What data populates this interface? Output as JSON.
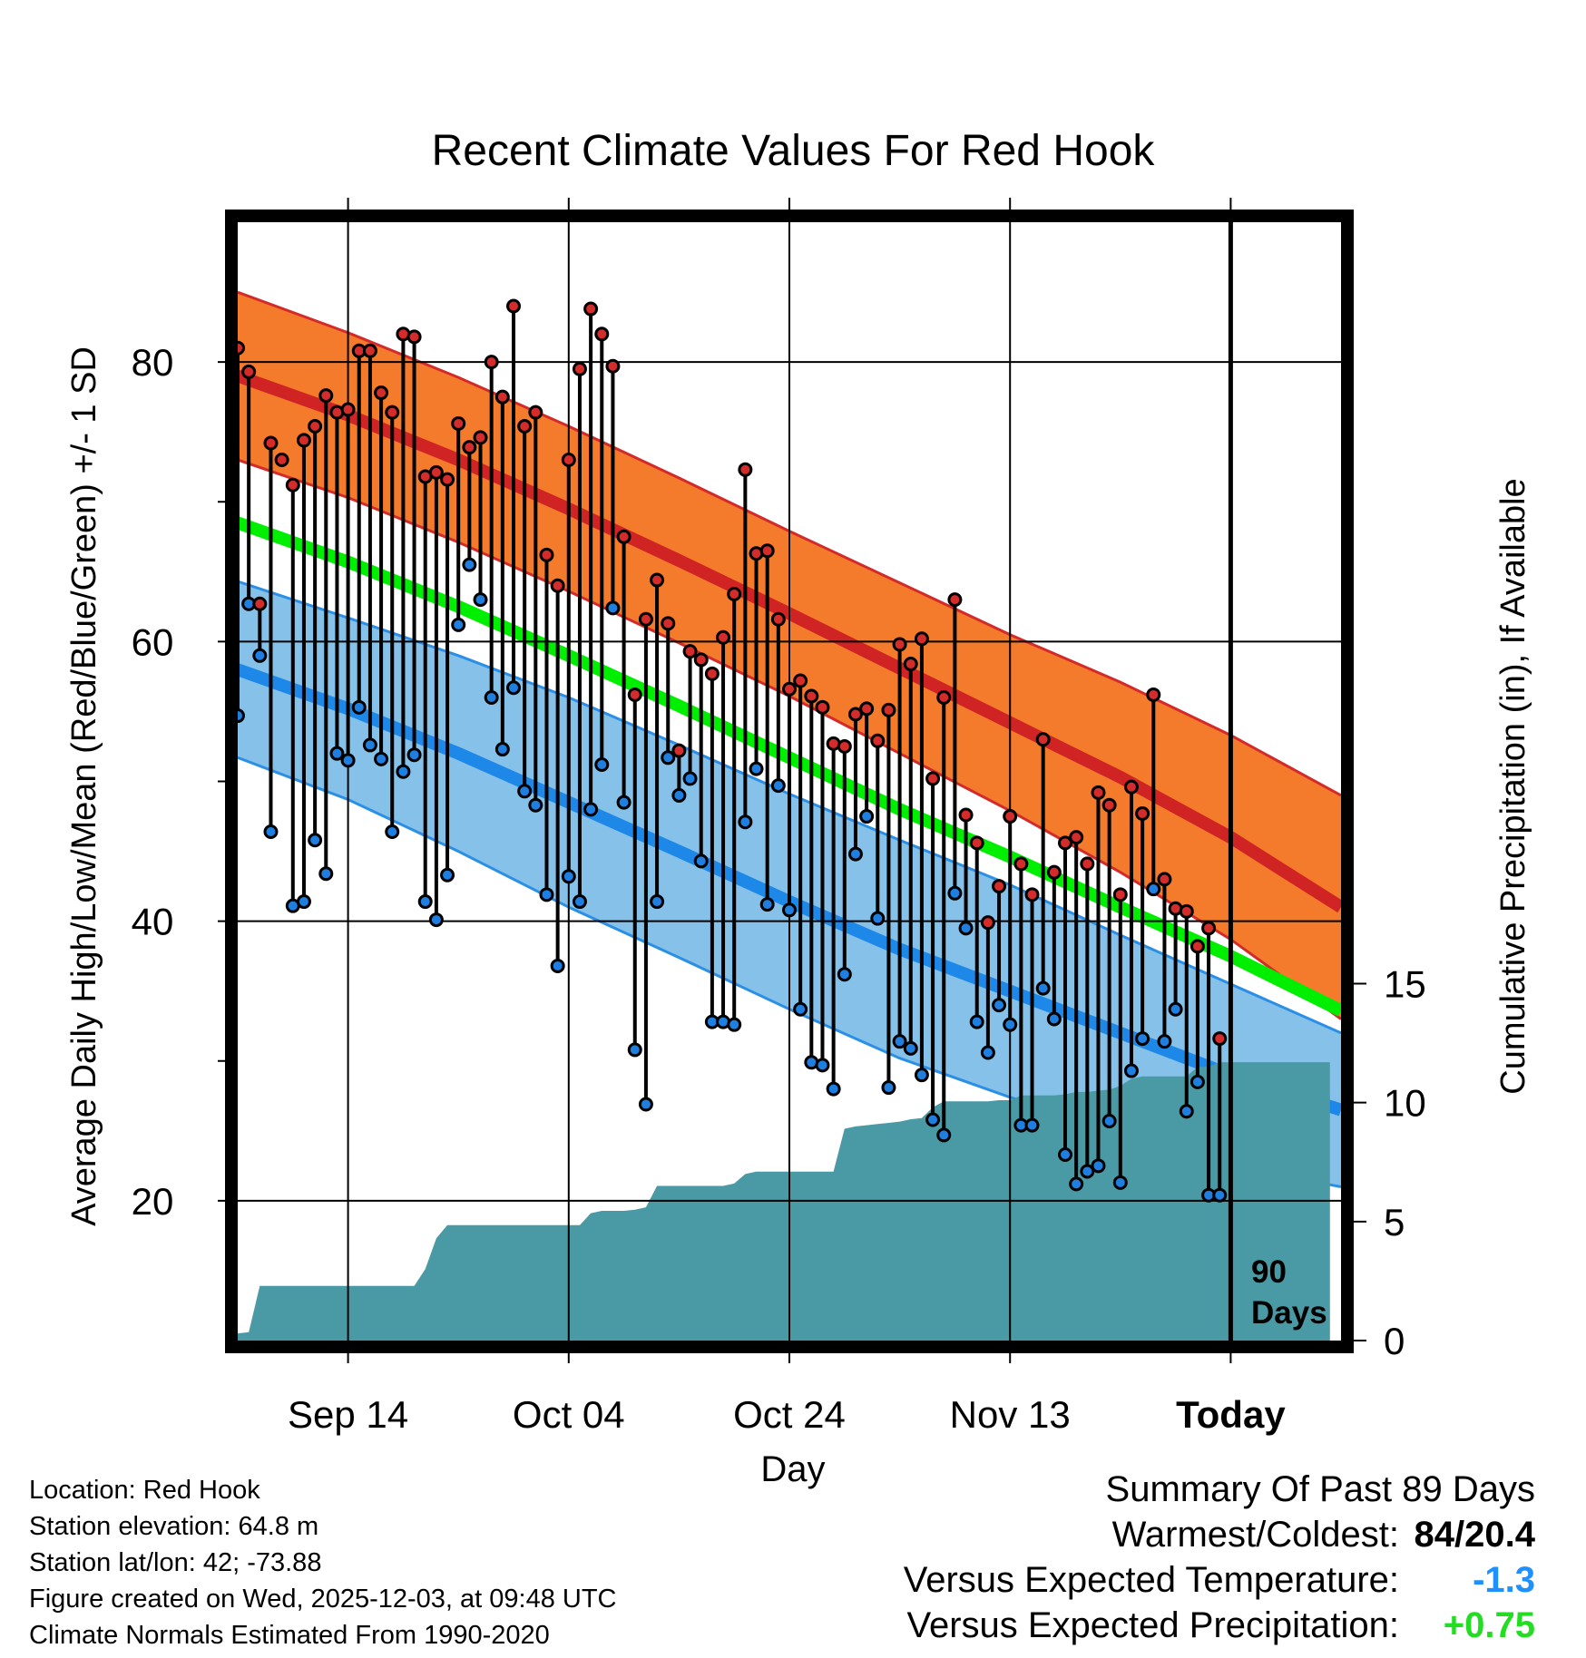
{
  "colors": {
    "high_band": "#f47a2c",
    "high_line": "#d02424",
    "high_edge": "#d32a2a",
    "low_band": "#85c1e8",
    "low_line": "#1e88e8",
    "low_edge": "#2b8fe6",
    "mean_line": "#00ee00",
    "precip": "#4a9aa6",
    "frame": "#000000",
    "warm_dot": "#d42b2b",
    "cold_dot": "#1f7fe0"
  },
  "summary": {
    "title": "Summary Of Past 89 Days",
    "warmest_coldest_label": "Warmest/Coldest:",
    "warmest_coldest_value": "84/20.4",
    "temp_label": "Versus Expected Temperature:",
    "temp_value": "-1.3",
    "precip_label": "Versus Expected Precipitation:",
    "precip_value": "+0.75"
  },
  "info": {
    "location": "Location: Red Hook",
    "elevation": "Station elevation: 64.8 m",
    "latlon": "Station lat/lon: 42; -73.88",
    "created": "Figure created on Wed, 2025-12-03, at 09:48 UTC",
    "normals": "Climate Normals Estimated From 1990-2020"
  },
  "chart_data": {
    "type": "line",
    "title": "Recent Climate Values For Red Hook",
    "xlabel": "Day",
    "ylabel": "Average Daily High/Low/Mean (Red/Blue/Green) +/- 1 SD",
    "ylabel_right": "Cumulative Precipitation (in), If Available",
    "x_tick_labels": [
      "Sep 14",
      "Oct 04",
      "Oct 24",
      "Nov 13",
      "Today"
    ],
    "x_tick_days": [
      11,
      31,
      51,
      71,
      91
    ],
    "xlim": [
      1,
      101
    ],
    "ylim": [
      10,
      90
    ],
    "y_ticks": [
      20,
      40,
      60,
      80
    ],
    "y2lim": [
      0,
      47
    ],
    "y2_ticks": [
      0,
      5,
      10,
      15
    ],
    "today_marker": {
      "day": 91,
      "label_line1": "90",
      "label_line2": "Days"
    },
    "normals": {
      "days": [
        1,
        11,
        21,
        31,
        41,
        51,
        61,
        71,
        81,
        91,
        101
      ],
      "high_mean": [
        79.0,
        76.2,
        73.0,
        69.5,
        65.8,
        62.0,
        58.1,
        54.2,
        50.3,
        46.0,
        41.0
      ],
      "high_sd": [
        6.0,
        5.9,
        5.9,
        5.9,
        5.9,
        5.9,
        6.1,
        6.3,
        6.8,
        7.3,
        8.0
      ],
      "low_mean": [
        58.0,
        55.2,
        52.0,
        48.5,
        45.0,
        41.4,
        38.0,
        35.0,
        32.0,
        29.0,
        26.5
      ],
      "low_sd": [
        6.3,
        6.5,
        7.0,
        7.5,
        7.6,
        7.7,
        7.8,
        7.6,
        7.0,
        6.5,
        5.5
      ],
      "mean": [
        68.5,
        65.7,
        62.5,
        59.0,
        55.4,
        51.7,
        48.0,
        44.6,
        41.0,
        37.5,
        33.6
      ]
    },
    "series": [
      {
        "name": "Daily High",
        "values": [
          81,
          79.3,
          62.7,
          74.2,
          73,
          71.2,
          74.4,
          75.4,
          77.6,
          76.4,
          76.6,
          80.8,
          80.8,
          77.8,
          76.4,
          82,
          81.8,
          71.8,
          72.1,
          71.6,
          75.6,
          73.9,
          74.6,
          80,
          77.5,
          84,
          75.4,
          76.4,
          66.2,
          64,
          73,
          79.5,
          83.8,
          82,
          79.7,
          67.5,
          56.2,
          61.6,
          64.4,
          61.3,
          52.2,
          59.3,
          58.7,
          57.7,
          60.3,
          63.4,
          72.3,
          66.3,
          66.5,
          61.6,
          56.6,
          57.2,
          56.1,
          55.3,
          52.7,
          52.5,
          54.8,
          55.2,
          52.9,
          55.1,
          59.8,
          58.4,
          60.2,
          50.2,
          56,
          63,
          47.6,
          45.6,
          39.9,
          42.5,
          47.5,
          44.1,
          41.9,
          53,
          43.5,
          45.6,
          46,
          44.1,
          49.2,
          48.3,
          41.9,
          49.6,
          47.7,
          56.2,
          43,
          40.9,
          40.7,
          38.2,
          39.5,
          31.6
        ]
      },
      {
        "name": "Daily Low",
        "values": [
          54.7,
          62.7,
          59,
          46.4,
          null,
          41.1,
          41.4,
          45.8,
          43.4,
          52,
          51.5,
          55.3,
          52.6,
          51.6,
          46.4,
          50.7,
          51.9,
          41.4,
          40.1,
          43.3,
          61.2,
          65.5,
          63,
          56,
          52.3,
          56.7,
          49.3,
          48.3,
          41.9,
          36.8,
          43.2,
          41.4,
          48,
          51.2,
          62.4,
          48.5,
          30.8,
          26.9,
          41.4,
          51.7,
          49,
          50.2,
          44.3,
          32.8,
          32.8,
          32.6,
          47.1,
          50.9,
          41.2,
          49.7,
          40.8,
          33.7,
          29.9,
          29.7,
          28,
          36.2,
          44.8,
          47.5,
          40.2,
          28.1,
          31.4,
          30.9,
          29,
          25.8,
          24.7,
          42,
          39.5,
          32.8,
          30.6,
          34,
          32.6,
          25.4,
          25.4,
          35.2,
          33,
          23.3,
          21.2,
          22.1,
          22.5,
          25.7,
          21.3,
          29.3,
          31.6,
          42.3,
          31.4,
          33.7,
          26.4,
          28.5,
          20.4,
          20.4
        ]
      },
      {
        "name": "Cumulative Precipitation",
        "days": [
          1,
          2,
          3,
          4,
          5,
          6,
          17,
          18,
          19,
          20,
          21,
          32,
          33,
          34,
          35,
          36,
          37,
          38,
          39,
          40,
          41,
          42,
          43,
          44,
          45,
          46,
          47,
          48,
          49,
          50,
          51,
          52,
          53,
          54,
          55,
          56,
          57,
          58,
          59,
          60,
          61,
          62,
          63,
          64,
          65,
          66,
          67,
          68,
          69,
          70,
          71,
          72,
          73,
          74,
          75,
          76,
          77,
          78,
          79,
          80,
          81,
          82,
          83,
          84,
          85,
          86,
          87,
          88,
          89,
          90,
          91,
          100
        ],
        "values": [
          0.3,
          0.35,
          2.3,
          2.3,
          2.3,
          2.3,
          2.3,
          3.0,
          4.3,
          4.85,
          4.85,
          4.85,
          5.35,
          5.45,
          5.45,
          5.45,
          5.5,
          5.6,
          6.5,
          6.5,
          6.5,
          6.5,
          6.5,
          6.5,
          6.5,
          6.6,
          7.0,
          7.1,
          7.1,
          7.1,
          7.1,
          7.1,
          7.1,
          7.1,
          7.1,
          8.9,
          9.0,
          9.05,
          9.1,
          9.15,
          9.2,
          9.3,
          9.35,
          9.8,
          10.05,
          10.05,
          10.05,
          10.05,
          10.05,
          10.1,
          10.1,
          10.3,
          10.3,
          10.3,
          10.3,
          10.35,
          10.45,
          10.45,
          10.5,
          10.55,
          10.7,
          11.0,
          11.1,
          11.1,
          11.1,
          11.1,
          11.1,
          11.5,
          11.5,
          11.7,
          11.7,
          11.7
        ]
      }
    ]
  }
}
